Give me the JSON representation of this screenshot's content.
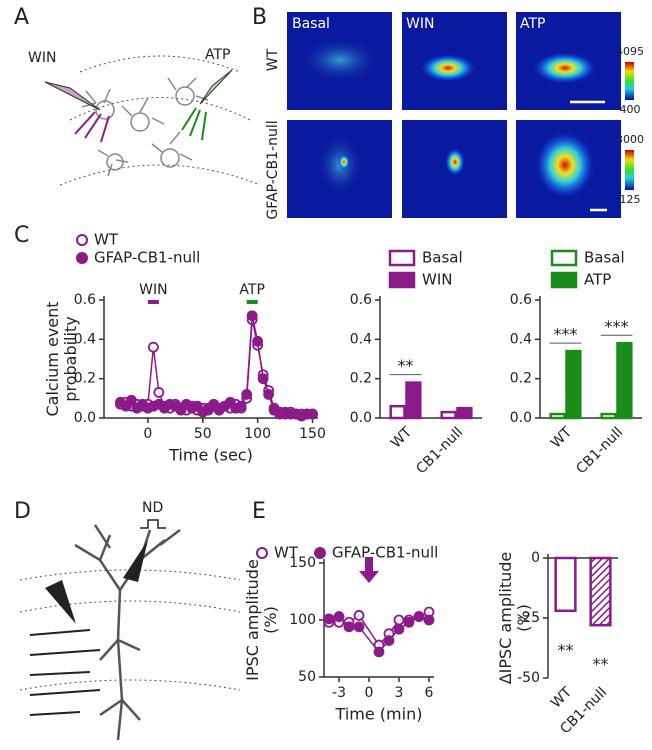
{
  "figure": {
    "panel_labels": [
      "A",
      "B",
      "C",
      "D",
      "E"
    ],
    "diagram_a": {
      "left_drug": "WIN",
      "right_drug": "ATP"
    },
    "images": {
      "columns": [
        "Basal",
        "WIN",
        "ATP"
      ],
      "rows": [
        "WT",
        "GFAP-CB1-null"
      ],
      "scale_top": [
        "4095",
        "400"
      ],
      "scale_bottom": [
        "3000",
        "125"
      ]
    },
    "diagram_d": {
      "stimulus": "ND"
    }
  },
  "chart_data": [
    {
      "type": "line",
      "ylabel": "Calcium event probability",
      "xlabel": "Time (sec)",
      "x": [
        -25,
        -20,
        -15,
        -10,
        -5,
        0,
        5,
        10,
        15,
        20,
        25,
        30,
        35,
        40,
        45,
        50,
        55,
        60,
        65,
        70,
        75,
        80,
        85,
        90,
        95,
        100,
        105,
        110,
        115,
        120,
        125,
        130,
        135,
        140,
        145,
        150
      ],
      "xlim": [
        -40,
        155
      ],
      "xticks": [
        0,
        50,
        100,
        150
      ],
      "ylim": [
        0,
        0.6
      ],
      "yticks": [
        {
          "value": 0,
          "label": "0.0"
        },
        0.2,
        0.4,
        0.6
      ],
      "series": [
        {
          "name": "WT",
          "color": "#8b1a8b",
          "marker": "open",
          "values": [
            0.07,
            0.08,
            0.06,
            0.07,
            0.06,
            0.07,
            0.36,
            0.13,
            0.06,
            0.05,
            0.07,
            0.05,
            0.04,
            0.06,
            0.04,
            0.05,
            0.04,
            0.06,
            0.05,
            0.06,
            0.05,
            0.07,
            0.05,
            0.1,
            0.5,
            0.37,
            0.22,
            0.14,
            0.05,
            0.03,
            0.02,
            0.03,
            0.02,
            0.02,
            0.02,
            0.02
          ]
        },
        {
          "name": "GFAP-CB1-null",
          "color": "#8b1a8b",
          "marker": "filled",
          "values": [
            0.08,
            0.06,
            0.09,
            0.05,
            0.07,
            0.05,
            0.06,
            0.07,
            0.05,
            0.07,
            0.06,
            0.04,
            0.07,
            0.05,
            0.06,
            0.03,
            0.05,
            0.07,
            0.04,
            0.06,
            0.08,
            0.05,
            0.06,
            0.12,
            0.52,
            0.39,
            0.2,
            0.12,
            0.04,
            0.02,
            0.03,
            0.02,
            0.02,
            0.01,
            0.02,
            0.02
          ]
        }
      ],
      "annotations": [
        {
          "text": "WIN",
          "span": [
            0,
            10
          ],
          "color": "#8b1a8b"
        },
        {
          "text": "ATP",
          "span": [
            90,
            100
          ],
          "color": "#1a8c1a"
        }
      ]
    },
    {
      "type": "bar",
      "categories": [
        "WT",
        "CB1-null"
      ],
      "ylim": [
        0,
        0.6
      ],
      "yticks": [
        {
          "value": 0,
          "label": "0.0"
        },
        0.2,
        0.4,
        0.6
      ],
      "series": [
        {
          "name": "Basal",
          "color": "#8b1a8b",
          "style": "open",
          "values": [
            0.06,
            0.03
          ]
        },
        {
          "name": "WIN",
          "color": "#8b1a8b",
          "style": "filled",
          "values": [
            0.18,
            0.05
          ]
        }
      ],
      "significance": [
        "**",
        null
      ]
    },
    {
      "type": "bar",
      "categories": [
        "WT",
        "CB1-null"
      ],
      "ylim": [
        0,
        0.6
      ],
      "yticks": [
        {
          "value": 0,
          "label": "0.0"
        },
        0.2,
        0.4,
        0.6
      ],
      "series": [
        {
          "name": "Basal",
          "color": "#1a8c1a",
          "style": "open",
          "values": [
            0.02,
            0.02
          ]
        },
        {
          "name": "ATP",
          "color": "#1a8c1a",
          "style": "filled",
          "values": [
            0.34,
            0.38
          ]
        }
      ],
      "significance": [
        "***",
        "***"
      ]
    },
    {
      "type": "line",
      "ylabel": "IPSC amplitude (%)",
      "xlabel": "Time (min)",
      "x": [
        -4,
        -3,
        -2,
        -1,
        1,
        2,
        3,
        4,
        5,
        6
      ],
      "xlim": [
        -4.5,
        6.5
      ],
      "xticks": [
        -3,
        0,
        3,
        6
      ],
      "ylim": [
        50,
        150
      ],
      "yticks": [
        50,
        100,
        150
      ],
      "event_x": 0,
      "event_color": "#8b1a8b",
      "series": [
        {
          "name": "WT",
          "color": "#8b1a8b",
          "marker": "open",
          "values": [
            98,
            98,
            98,
            104,
            78,
            88,
            100,
            100,
            103,
            107
          ]
        },
        {
          "name": "GFAP-CB1-null",
          "color": "#8b1a8b",
          "marker": "filled",
          "values": [
            101,
            103,
            94,
            94,
            72,
            82,
            92,
            98,
            103,
            100
          ]
        }
      ]
    },
    {
      "type": "bar",
      "categories": [
        "WT",
        "CB1-null"
      ],
      "ylabel": "ΔIPSC amplitude (%)",
      "ylim": [
        -50,
        0
      ],
      "yticks": [
        -50,
        -25,
        0
      ],
      "series": [
        {
          "color": "#8b1a8b",
          "styles": [
            "open",
            "hatched"
          ],
          "values": [
            -22,
            -28
          ]
        }
      ],
      "significance": [
        "**",
        "**"
      ]
    }
  ]
}
